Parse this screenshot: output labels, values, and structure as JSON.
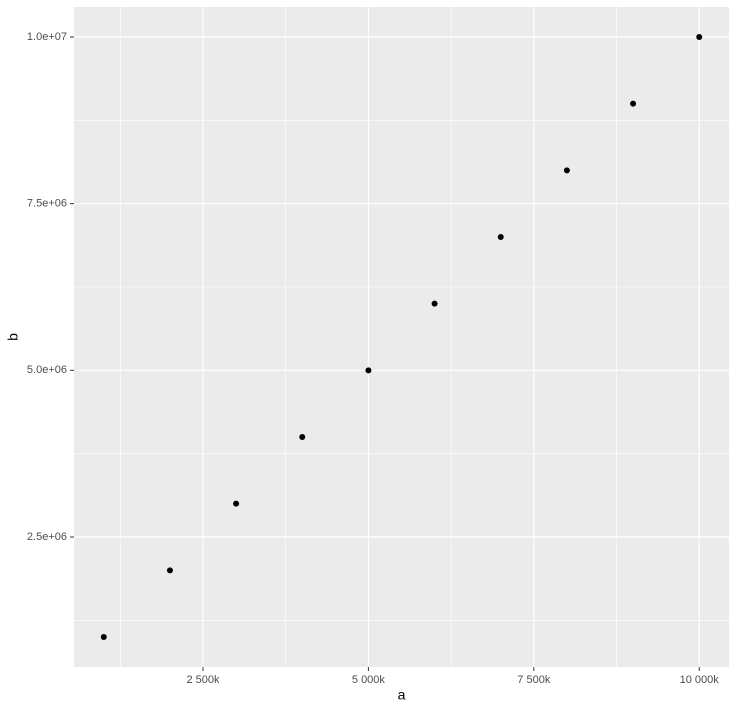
{
  "chart_data": {
    "type": "scatter",
    "x_label": "a",
    "y_label": "b",
    "x": [
      1000000,
      2000000,
      3000000,
      4000000,
      5000000,
      6000000,
      7000000,
      8000000,
      9000000,
      10000000
    ],
    "series": [
      {
        "color": "#000000",
        "values": [
          1000000,
          2000000,
          3000000,
          4000000,
          5000000,
          6000000,
          7000000,
          8000000,
          9000000,
          10000000
        ]
      }
    ],
    "xlim": [
      550000,
      10450000
    ],
    "ylim": [
      550000,
      10450000
    ],
    "xticks": [
      {
        "value": 2500000,
        "label": "2 500k"
      },
      {
        "value": 5000000,
        "label": "5 000k"
      },
      {
        "value": 7500000,
        "label": "7 500k"
      },
      {
        "value": 10000000,
        "label": "10 000k"
      }
    ],
    "yticks": [
      {
        "value": 2500000,
        "label": "2.5e+06"
      },
      {
        "value": 5000000,
        "label": "5.0e+06"
      },
      {
        "value": 7500000,
        "label": "7.5e+06"
      },
      {
        "value": 10000000,
        "label": "1.0e+07"
      }
    ],
    "x_minor_ticks": [
      1250000,
      3750000,
      6250000,
      8750000
    ],
    "y_minor_ticks": [
      1250000,
      3750000,
      6250000,
      8750000
    ],
    "grid": true
  }
}
